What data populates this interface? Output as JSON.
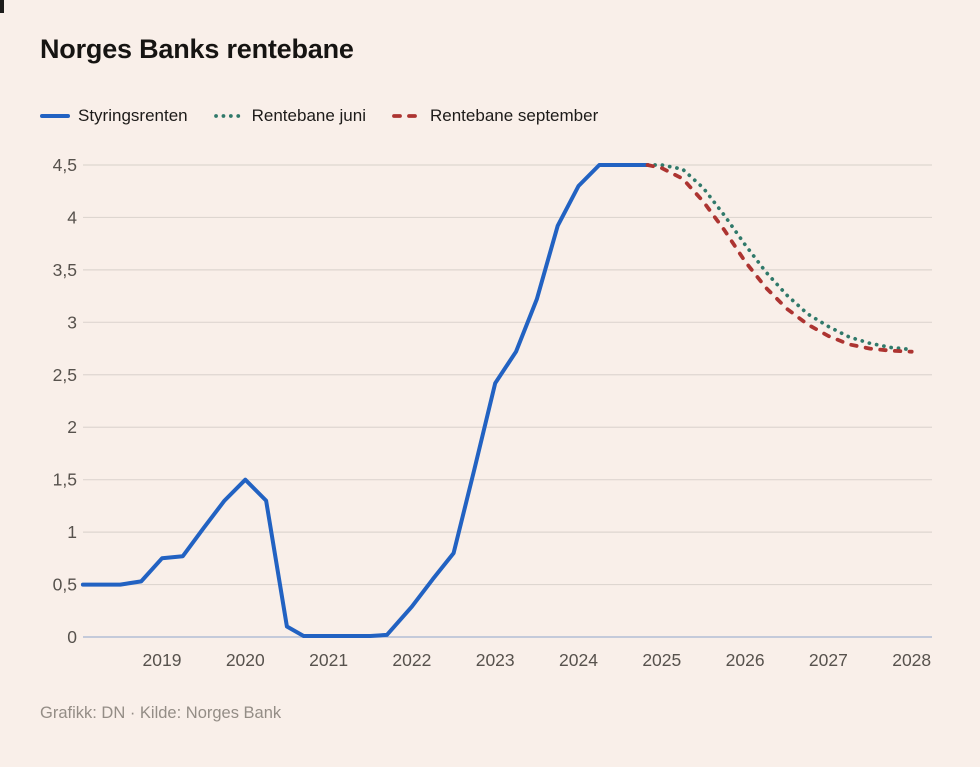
{
  "title": "Norges Banks rentebane",
  "footer": "Grafikk: DN · Kilde: Norges Bank",
  "legend": [
    {
      "label": "Styringsrenten",
      "style": "solid",
      "color": "#2262c2"
    },
    {
      "label": "Rentebane juni",
      "style": "dotted",
      "color": "#30796a"
    },
    {
      "label": "Rentebane september",
      "style": "dashed",
      "color": "#ad3431"
    }
  ],
  "chart_data": {
    "type": "line",
    "title": "Norges Banks rentebane",
    "xlabel": "",
    "ylabel": "",
    "grid": "horizontal",
    "legend_position": "top",
    "background_color": "#f9efe9",
    "grid_color": "#ded6d0",
    "zero_axis_color": "#b3bed6",
    "axis_text_color": "#57524d",
    "ylim": [
      0,
      4.5
    ],
    "xlim": [
      2018.0,
      2028.25
    ],
    "y_ticks": [
      {
        "value": 0,
        "label": "0"
      },
      {
        "value": 0.5,
        "label": "0,5"
      },
      {
        "value": 1,
        "label": "1"
      },
      {
        "value": 1.5,
        "label": "1,5"
      },
      {
        "value": 2,
        "label": "2"
      },
      {
        "value": 2.5,
        "label": "2,5"
      },
      {
        "value": 3,
        "label": "3"
      },
      {
        "value": 3.5,
        "label": "3,5"
      },
      {
        "value": 4,
        "label": "4"
      },
      {
        "value": 4.5,
        "label": "4,5"
      }
    ],
    "x_ticks": [
      "2019",
      "2020",
      "2021",
      "2022",
      "2023",
      "2024",
      "2025",
      "2026",
      "2027",
      "2028"
    ],
    "series": [
      {
        "name": "Styringsrenten",
        "style": "solid",
        "color": "#2262c2",
        "points": [
          [
            2018.05,
            0.5
          ],
          [
            2018.5,
            0.5
          ],
          [
            2018.75,
            0.53
          ],
          [
            2019.0,
            0.75
          ],
          [
            2019.25,
            0.77
          ],
          [
            2019.5,
            1.04
          ],
          [
            2019.75,
            1.3
          ],
          [
            2020.0,
            1.5
          ],
          [
            2020.25,
            1.3
          ],
          [
            2020.5,
            0.1
          ],
          [
            2020.7,
            0.01
          ],
          [
            2021.0,
            0.01
          ],
          [
            2021.5,
            0.01
          ],
          [
            2021.7,
            0.02
          ],
          [
            2022.0,
            0.29
          ],
          [
            2022.25,
            0.55
          ],
          [
            2022.5,
            0.8
          ],
          [
            2022.75,
            1.6
          ],
          [
            2023.0,
            2.42
          ],
          [
            2023.25,
            2.72
          ],
          [
            2023.5,
            3.22
          ],
          [
            2023.75,
            3.92
          ],
          [
            2024.0,
            4.3
          ],
          [
            2024.25,
            4.5
          ],
          [
            2024.83,
            4.5
          ]
        ]
      },
      {
        "name": "Rentebane juni",
        "style": "dotted",
        "color": "#30796a",
        "points": [
          [
            2024.83,
            4.5
          ],
          [
            2025.0,
            4.5
          ],
          [
            2025.25,
            4.46
          ],
          [
            2025.5,
            4.28
          ],
          [
            2025.75,
            4.02
          ],
          [
            2026.0,
            3.74
          ],
          [
            2026.25,
            3.48
          ],
          [
            2026.5,
            3.26
          ],
          [
            2026.75,
            3.08
          ],
          [
            2027.0,
            2.96
          ],
          [
            2027.25,
            2.86
          ],
          [
            2027.5,
            2.8
          ],
          [
            2027.75,
            2.76
          ],
          [
            2028.0,
            2.74
          ]
        ]
      },
      {
        "name": "Rentebane september",
        "style": "dashed",
        "color": "#ad3431",
        "points": [
          [
            2024.83,
            4.5
          ],
          [
            2025.0,
            4.47
          ],
          [
            2025.25,
            4.37
          ],
          [
            2025.5,
            4.15
          ],
          [
            2025.75,
            3.88
          ],
          [
            2026.0,
            3.58
          ],
          [
            2026.25,
            3.33
          ],
          [
            2026.5,
            3.13
          ],
          [
            2026.75,
            2.98
          ],
          [
            2027.0,
            2.87
          ],
          [
            2027.25,
            2.79
          ],
          [
            2027.5,
            2.75
          ],
          [
            2027.75,
            2.73
          ],
          [
            2028.0,
            2.72
          ]
        ]
      }
    ]
  }
}
